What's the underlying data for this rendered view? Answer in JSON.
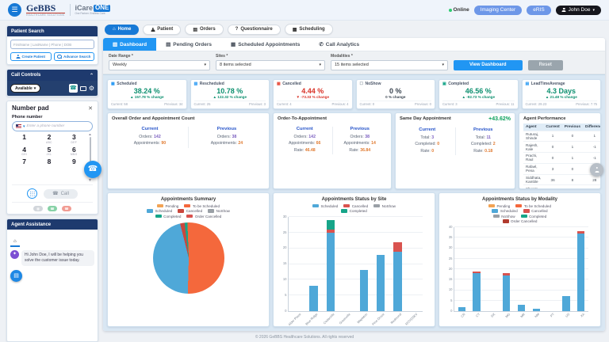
{
  "header": {
    "brand": "GeBBS",
    "brand_tagline": "HEALTHCARE SOLUTIONS",
    "product_prefix": "iCare",
    "product_suffix": "ONE",
    "product_tagline": "One Partner. Endless Care.",
    "online_status": "Online",
    "imaging_center_button": "Imaging Center",
    "eris_button": "eRIS",
    "user_name": "John Doe"
  },
  "sidebar": {
    "patient_search": {
      "title": "Patient Search",
      "input_placeholder": "FirstName | LastName | Phone | DOB",
      "create_button": "Create Patient",
      "advance_button": "Advance Search"
    },
    "call_controls": {
      "title": "Call Controls",
      "availability": "Available"
    },
    "number_pad": {
      "title": "Number pad",
      "phone_label": "Phone number",
      "phone_placeholder": "Enter a phone number",
      "keys": [
        {
          "digit": "1",
          "sub": ""
        },
        {
          "digit": "2",
          "sub": "ABC"
        },
        {
          "digit": "3",
          "sub": "DEF"
        },
        {
          "digit": "4",
          "sub": "GHI"
        },
        {
          "digit": "5",
          "sub": "JKL"
        },
        {
          "digit": "6",
          "sub": "MNO"
        },
        {
          "digit": "7",
          "sub": ""
        },
        {
          "digit": "8",
          "sub": ""
        },
        {
          "digit": "9",
          "sub": ""
        }
      ],
      "call_button": "Call"
    },
    "agent_assistance": {
      "title": "Agent Assistance",
      "message": "Hi John Doe, I will be helping you solve the customer issue today."
    }
  },
  "nav": {
    "tabs": [
      {
        "label": "Home"
      },
      {
        "label": "Patient"
      },
      {
        "label": "Orders"
      },
      {
        "label": "Questionnaire"
      },
      {
        "label": "Scheduling"
      }
    ],
    "subtabs": [
      {
        "label": "Dashboard"
      },
      {
        "label": "Pending Orders"
      },
      {
        "label": "Scheduled Appointments"
      },
      {
        "label": "Call Analytics"
      }
    ]
  },
  "filters": {
    "date_range_label": "Date Range *",
    "date_range_value": "Weekly",
    "sites_label": "Sites *",
    "sites_value": "8 items selected",
    "modalities_label": "Modalities *",
    "modalities_value": "15 items selected",
    "view_button": "View Dashboard",
    "reset_button": "Reset"
  },
  "kpis": [
    {
      "label": "Scheduled",
      "value": "38.24 %",
      "change": "▲ 157.78 % change",
      "current": "Current: 58",
      "previous": "Previous: 34"
    },
    {
      "label": "Rescheduled",
      "value": "10.78 %",
      "change": "▲ 122.32 % change",
      "current": "Current: 25",
      "previous": "Previous: 3"
    },
    {
      "label": "Cancelled",
      "value": "4.44 %",
      "change": "▼ -73.33 % change",
      "current": "Current: 4",
      "previous": "Previous: 4"
    },
    {
      "label": "NoShow",
      "value": "0 %",
      "change": "0 % change",
      "current": "Current: 0",
      "previous": "Previous: 0"
    },
    {
      "label": "Completed",
      "value": "46.56 %",
      "change": "▲ -92.73 % change",
      "current": "Current: 3",
      "previous": "Previous: 11"
    },
    {
      "label": "LeadTimeAverage",
      "value": "4.3 Days",
      "change": "▲ 21.48 % change",
      "current": "Current: 29.23",
      "previous": "Previous: 7.75"
    }
  ],
  "summary": {
    "overall": {
      "title": "Overall Order and Appointment Count",
      "col1_header": "Current",
      "col2_header": "Previous",
      "col1_rows": [
        {
          "label": "Orders:",
          "value": "142"
        },
        {
          "label": "Appointments:",
          "value": "90"
        }
      ],
      "col2_rows": [
        {
          "label": "Orders:",
          "value": "38"
        },
        {
          "label": "Appointments:",
          "value": "24"
        }
      ]
    },
    "order_to_appointment": {
      "title": "Order-To-Appointment",
      "col1_header": "Current",
      "col2_header": "Previous",
      "col1_rows": [
        {
          "label": "Orders:",
          "value": "142"
        },
        {
          "label": "Appointments:",
          "value": "66"
        },
        {
          "label": "Rate:",
          "value": "46.48"
        }
      ],
      "col2_rows": [
        {
          "label": "Orders:",
          "value": "38"
        },
        {
          "label": "Appointments:",
          "value": "14"
        },
        {
          "label": "Rate:",
          "value": "36.84"
        }
      ]
    },
    "same_day": {
      "title": "Same Day Appointment",
      "badge": "+43.62%",
      "col1_header": "Current",
      "col2_header": "Previous",
      "col1_rows": [
        {
          "label": "Total:",
          "value": "3"
        },
        {
          "label": "Completed:",
          "value": "0"
        },
        {
          "label": "Rate:",
          "value": "0"
        }
      ],
      "col2_rows": [
        {
          "label": "Total:",
          "value": "11"
        },
        {
          "label": "Completed:",
          "value": "2"
        },
        {
          "label": "Rate:",
          "value": "0.18"
        }
      ]
    }
  },
  "agent_performance": {
    "title": "Agent Performance",
    "columns": [
      "Agent",
      "Current",
      "Previous",
      "Difference"
    ],
    "rows": [
      [
        "Ruturaj, Shinde",
        "1",
        "0",
        "1"
      ],
      [
        "Rajesh, Kale",
        "0",
        "1",
        "-1"
      ],
      [
        "Prachi, Raul",
        "0",
        "1",
        "-1"
      ],
      [
        "Rafael, Pena",
        "3",
        "0",
        "3"
      ],
      [
        "Siddhata, Kamble",
        "36",
        "8",
        "28"
      ],
      [
        "Shweta, Sambhaji",
        "10",
        "2",
        "8"
      ],
      [
        "Supriya, Bandgar",
        "40",
        "12",
        "28"
      ]
    ]
  },
  "chart_data": [
    {
      "type": "pie",
      "title": "Appointments Summary",
      "legend_max": 115,
      "legend": [
        {
          "label": "Pending",
          "color": "#f2a354"
        },
        {
          "label": "To be Scheduled",
          "color": "#f4683c"
        },
        {
          "label": "Scheduled",
          "color": "#4fa8d8"
        },
        {
          "label": "Cancelled",
          "color": "#c9473d"
        },
        {
          "label": "NoShow",
          "color": "#9aa0a6"
        },
        {
          "label": "Completed",
          "color": "#17a589"
        },
        {
          "label": "Order Cancelled",
          "color": "#d9534f"
        }
      ],
      "slices": [
        {
          "label": "Cancelled",
          "value": 2,
          "color": "#c9473d"
        },
        {
          "label": "Completed",
          "value": 1.3,
          "color": "#17a589"
        },
        {
          "label": "To be Scheduled",
          "value": 51,
          "color": "#f4683c"
        },
        {
          "label": "Scheduled",
          "value": 45.7,
          "color": "#4fa8d8"
        }
      ],
      "start_angle": -14
    },
    {
      "type": "bar",
      "title": "Appointments Status by Site",
      "legend_max": 115,
      "categories": [
        "Alder Plaza",
        "Blue Ridge",
        "Cedarville",
        "Greenville",
        "Mapleton",
        "Pine Drove",
        "Redmond",
        "ROYDSKV"
      ],
      "series": [
        {
          "name": "Scheduled",
          "color": "#4fa8d8",
          "values": [
            0,
            8,
            25,
            0,
            13,
            18,
            19,
            0
          ]
        },
        {
          "name": "Cancelled",
          "color": "#d9534f",
          "values": [
            0,
            0,
            1,
            0,
            0,
            0,
            3,
            0
          ]
        },
        {
          "name": "NoShow",
          "color": "#9aa0a6",
          "values": [
            0,
            0,
            0,
            0,
            0,
            0,
            0,
            0
          ]
        },
        {
          "name": "Completed",
          "color": "#17a589",
          "values": [
            0,
            0,
            3,
            0,
            0,
            0,
            0,
            0
          ]
        }
      ],
      "ylim": [
        0,
        30
      ],
      "ytick": 5
    },
    {
      "type": "bar",
      "title": "Appointments Status by Modality",
      "legend_max": 82,
      "categories": [
        "CR",
        "CT",
        "DX",
        "MG",
        "MR",
        "NM",
        "PT",
        "US",
        "XA"
      ],
      "series": [
        {
          "name": "Pending",
          "color": "#f2a354",
          "values": [
            0,
            0,
            0,
            0,
            0,
            0,
            0,
            0,
            0
          ]
        },
        {
          "name": "To be Scheduled",
          "color": "#f4683c",
          "values": [
            0,
            0,
            0,
            0,
            0,
            0,
            0,
            0,
            0
          ]
        },
        {
          "name": "Scheduled",
          "color": "#4fa8d8",
          "values": [
            2,
            18,
            0,
            17,
            3,
            1,
            0,
            7,
            37
          ]
        },
        {
          "name": "Cancelled",
          "color": "#d9534f",
          "values": [
            0,
            1,
            0,
            1,
            0,
            0,
            0,
            0,
            1
          ]
        },
        {
          "name": "NoShow",
          "color": "#9aa0a6",
          "values": [
            0,
            0,
            0,
            0,
            0,
            0,
            0,
            0,
            0
          ]
        },
        {
          "name": "Completed",
          "color": "#17a589",
          "values": [
            0,
            0,
            0,
            0,
            0,
            0,
            0,
            0,
            0
          ]
        },
        {
          "name": "Order Cancelled",
          "color": "#b03a2e",
          "values": [
            0,
            0,
            0,
            0,
            0,
            0,
            0,
            0,
            0
          ]
        }
      ],
      "ylim": [
        0,
        40
      ],
      "ytick": 5
    }
  ],
  "footer": {
    "copyright": "© 2026 GeBBS Healthcare Solutions. All rights reserved"
  }
}
